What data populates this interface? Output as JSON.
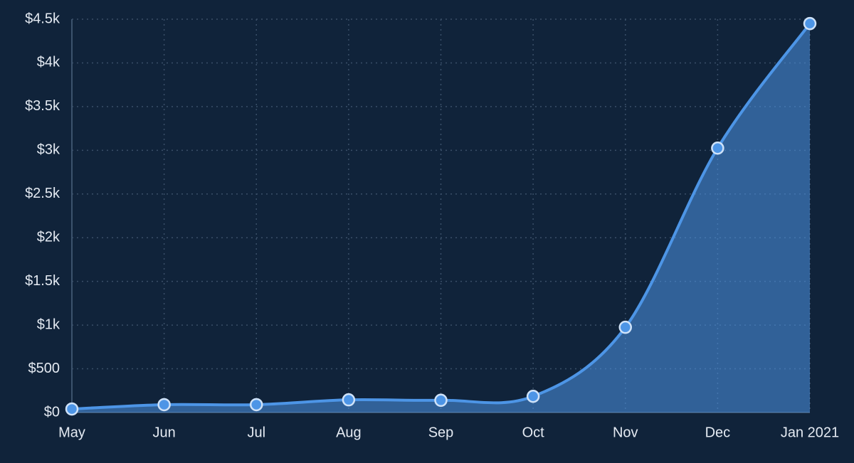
{
  "chart_data": {
    "type": "area",
    "categories": [
      "May",
      "Jun",
      "Jul",
      "Aug",
      "Sep",
      "Oct",
      "Nov",
      "Dec",
      "Jan 2021"
    ],
    "series": [
      {
        "color": "#4d95e6",
        "values": [
          40,
          90,
          90,
          145,
          140,
          185,
          975,
          3025,
          4450
        ]
      }
    ],
    "ylim": [
      0,
      4500
    ],
    "yticks": [
      {
        "value": 0,
        "label": "$0"
      },
      {
        "value": 500,
        "label": "$500"
      },
      {
        "value": 1000,
        "label": "$1k"
      },
      {
        "value": 1500,
        "label": "$1.5k"
      },
      {
        "value": 2000,
        "label": "$2k"
      },
      {
        "value": 2500,
        "label": "$2.5k"
      },
      {
        "value": 3000,
        "label": "$3k"
      },
      {
        "value": 3500,
        "label": "$3.5k"
      },
      {
        "value": 4000,
        "label": "$4k"
      },
      {
        "value": 4500,
        "label": "$4.5k"
      }
    ],
    "grid": true
  }
}
